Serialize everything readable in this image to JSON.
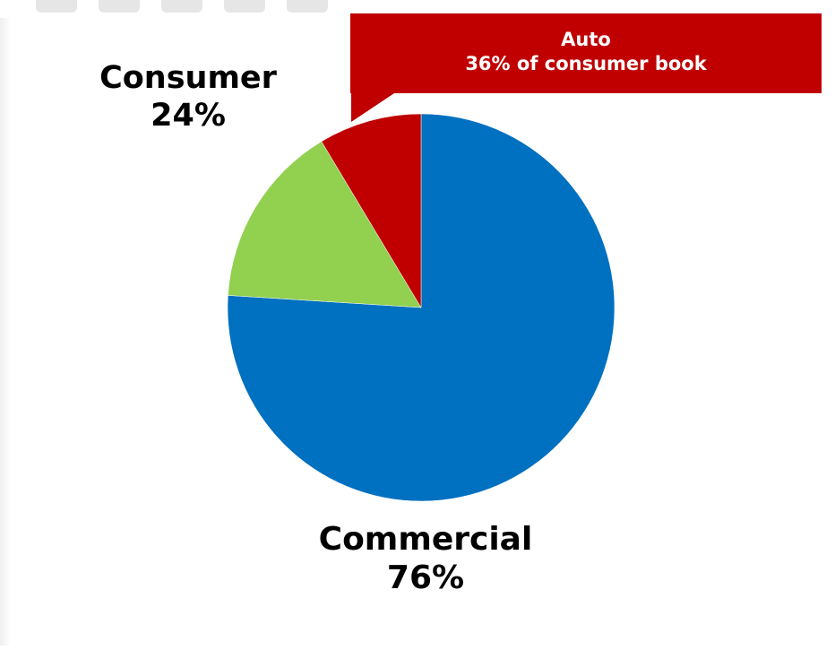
{
  "chart_data": {
    "type": "pie",
    "slices": [
      {
        "name": "Commercial",
        "label": "Commercial",
        "value": 76,
        "value_label": "76%",
        "color": "#0070c0"
      },
      {
        "name": "Consumer (other)",
        "label": "",
        "value": 15.4,
        "color": "#92d050"
      },
      {
        "name": "Auto",
        "label": "Auto",
        "value": 8.6,
        "color": "#c00000"
      }
    ],
    "labels": {
      "consumer_name": "Consumer",
      "consumer_pct": "24%",
      "commercial_name": "Commercial",
      "commercial_pct": "76%"
    },
    "callout": {
      "line1": "Auto",
      "line2": "36% of consumer book",
      "color": "#c00000"
    },
    "start_angle": "12 o'clock",
    "direction": "clockwise",
    "legend": "none"
  }
}
